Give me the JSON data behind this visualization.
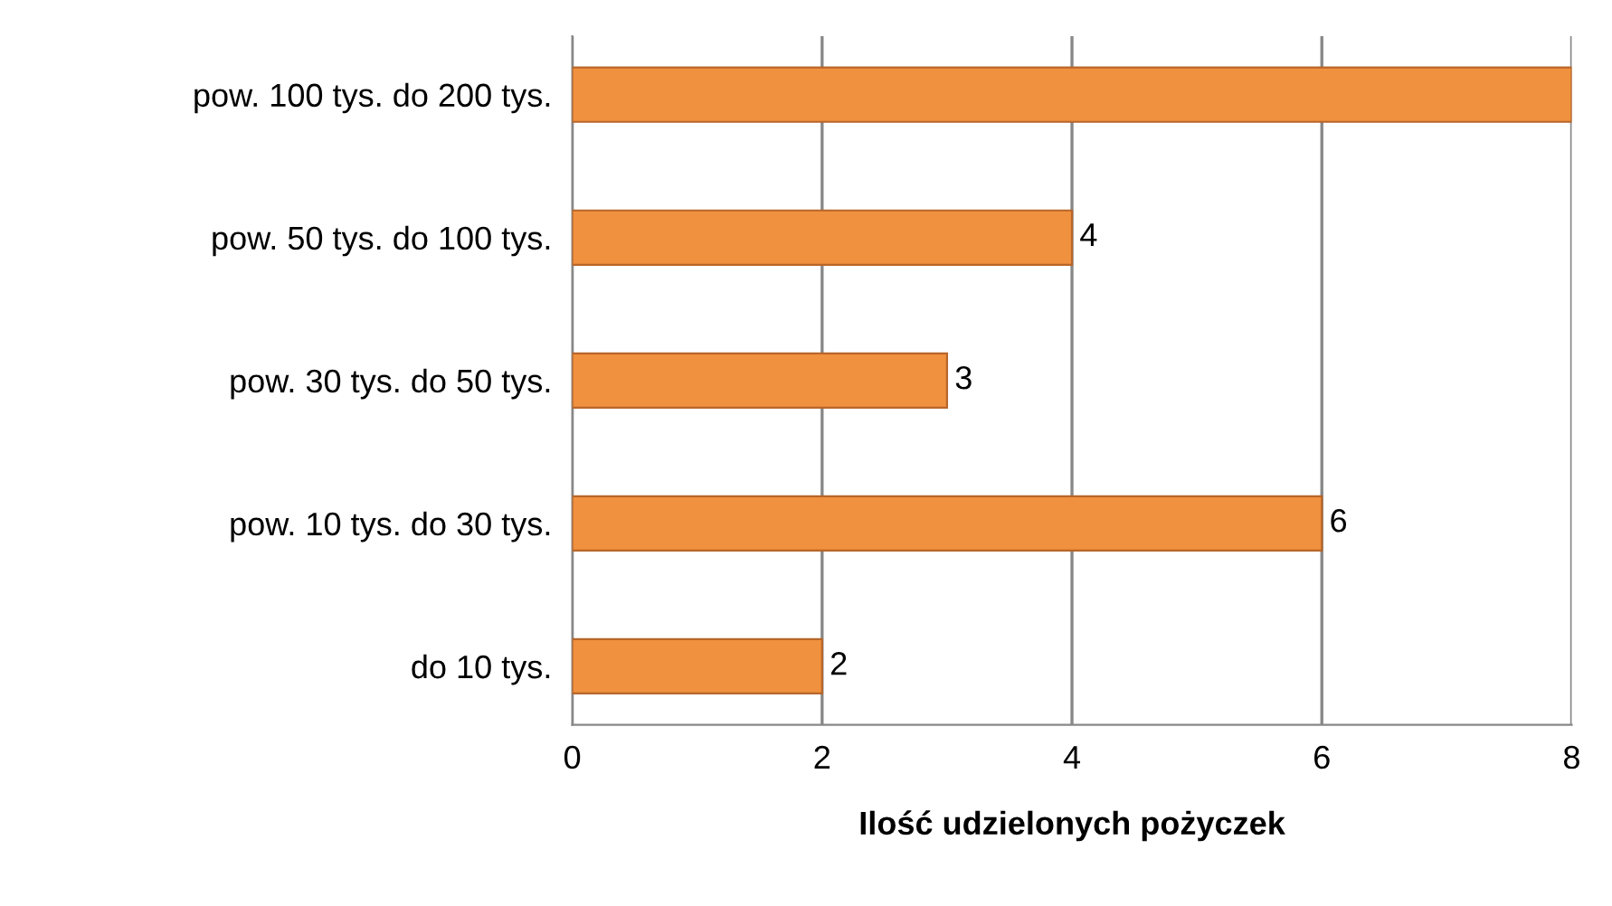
{
  "chart_data": {
    "type": "bar",
    "orientation": "horizontal",
    "xlabel": "Ilość udzielonych pożyczek",
    "categories": [
      "pow. 100 tys. do 200 tys.",
      "pow. 50 tys. do 100 tys.",
      "pow. 30 tys. do 50 tys.",
      "pow. 10 tys. do 30 tys.",
      "do 10 tys."
    ],
    "values": [
      8,
      4,
      3,
      6,
      2
    ],
    "value_labels": [
      null,
      "4",
      "3",
      "6",
      "2"
    ],
    "color": "#f0913f",
    "xlim": [
      0,
      8
    ],
    "xticks": [
      0,
      2,
      4,
      6,
      8
    ],
    "grid": "x"
  }
}
